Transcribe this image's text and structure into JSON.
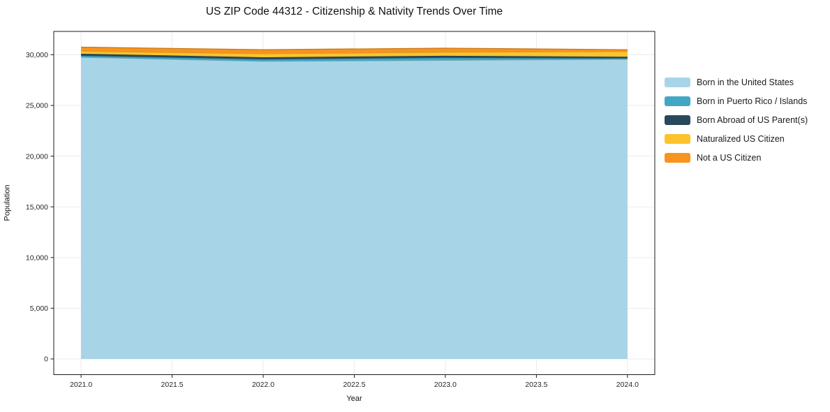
{
  "chart_data": {
    "type": "area",
    "stacked": true,
    "title": "US ZIP Code 44312 - Citizenship & Nativity Trends Over Time",
    "xlabel": "Year",
    "ylabel": "Population",
    "x": [
      2021,
      2022,
      2023,
      2024
    ],
    "series": [
      {
        "name": "Born in the United States",
        "color": "#a8d4e8",
        "values": [
          29750,
          29350,
          29450,
          29550
        ]
      },
      {
        "name": "Born in Puerto Rico / Islands",
        "color": "#41a7c4",
        "values": [
          150,
          200,
          250,
          100
        ]
      },
      {
        "name": "Born Abroad of US Parent(s)",
        "color": "#28495c",
        "values": [
          200,
          200,
          200,
          150
        ]
      },
      {
        "name": "Naturalized US Citizen",
        "color": "#fcc32d",
        "values": [
          250,
          350,
          350,
          520
        ]
      },
      {
        "name": "Not a US Citizen",
        "color": "#f7941e",
        "values": [
          400,
          400,
          400,
          180
        ]
      }
    ],
    "totals": [
      30750,
      30500,
      30650,
      30500
    ],
    "xlim": [
      2020.85,
      2024.15
    ],
    "ylim": [
      -1550,
      32300
    ],
    "x_tick_values": [
      2021.0,
      2021.5,
      2022.0,
      2022.5,
      2023.0,
      2023.5,
      2024.0
    ],
    "x_tick_labels": [
      "2021.0",
      "2021.5",
      "2022.0",
      "2022.5",
      "2023.0",
      "2023.5",
      "2024.0"
    ],
    "y_tick_values": [
      0,
      5000,
      10000,
      15000,
      20000,
      25000,
      30000
    ],
    "y_tick_labels": [
      "0",
      "5,000",
      "10,000",
      "15,000",
      "20,000",
      "25,000",
      "30,000"
    ],
    "grid": true,
    "grid_color": "#e9e9e9",
    "spine_color": "#1a1a1a",
    "legend_position": "right of axes, no frame"
  }
}
